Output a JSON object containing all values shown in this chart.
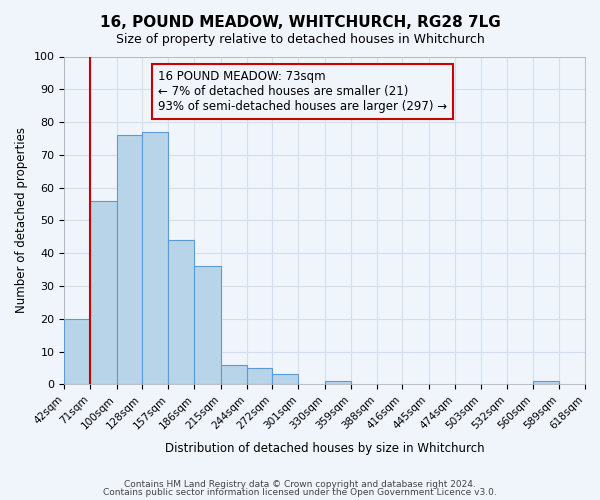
{
  "title": "16, POUND MEADOW, WHITCHURCH, RG28 7LG",
  "subtitle": "Size of property relative to detached houses in Whitchurch",
  "xlabel": "Distribution of detached houses by size in Whitchurch",
  "ylabel": "Number of detached properties",
  "bar_color": "#b8d4e8",
  "bar_edge_color": "#5b9bd5",
  "vline_color": "#cc0000",
  "vline_x": 71,
  "annotation_text": "16 POUND MEADOW: 73sqm\n← 7% of detached houses are smaller (21)\n93% of semi-detached houses are larger (297) →",
  "annotation_box_edge": "#cc0000",
  "bin_edges": [
    42,
    71,
    100,
    128,
    157,
    186,
    215,
    244,
    272,
    301,
    330,
    359,
    388,
    416,
    445,
    474,
    503,
    532,
    560,
    589,
    618
  ],
  "bin_labels": [
    "42sqm",
    "71sqm",
    "100sqm",
    "128sqm",
    "157sqm",
    "186sqm",
    "215sqm",
    "244sqm",
    "272sqm",
    "301sqm",
    "330sqm",
    "359sqm",
    "388sqm",
    "416sqm",
    "445sqm",
    "474sqm",
    "503sqm",
    "532sqm",
    "560sqm",
    "589sqm",
    "618sqm"
  ],
  "bar_heights": [
    20,
    56,
    76,
    77,
    44,
    36,
    6,
    5,
    3,
    0,
    1,
    0,
    0,
    0,
    0,
    0,
    0,
    0,
    1,
    0
  ],
  "ylim": [
    0,
    100
  ],
  "yticks": [
    0,
    10,
    20,
    30,
    40,
    50,
    60,
    70,
    80,
    90,
    100
  ],
  "footer1": "Contains HM Land Registry data © Crown copyright and database right 2024.",
  "footer2": "Contains public sector information licensed under the Open Government Licence v3.0.",
  "grid_color": "#d0e0f0",
  "background_color": "#f0f5fb"
}
